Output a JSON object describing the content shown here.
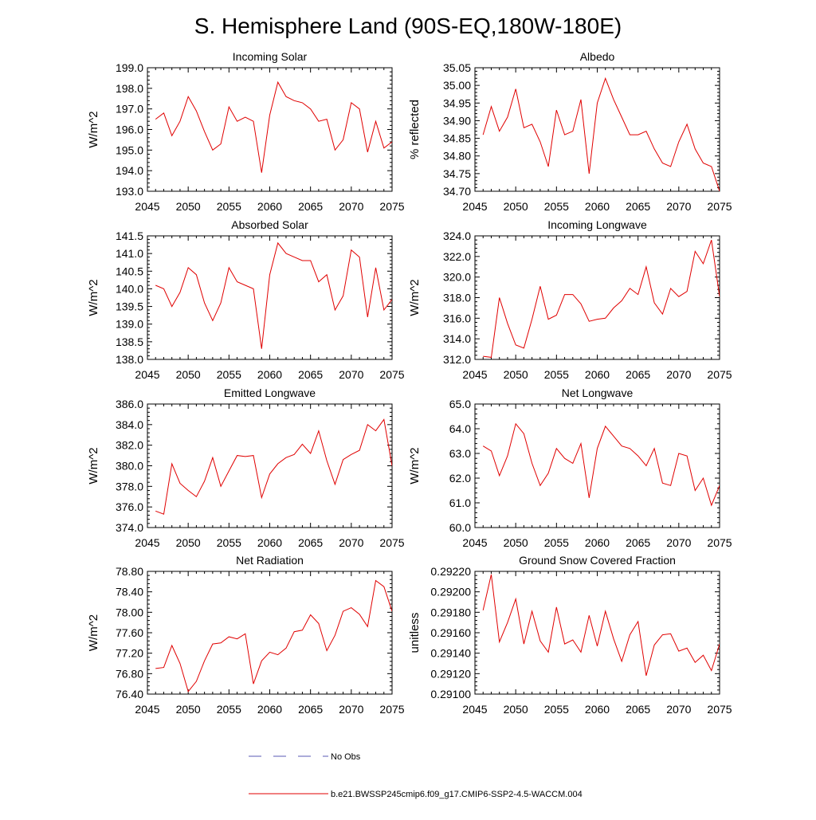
{
  "figure": {
    "title": "S. Hemisphere Land (90S-EQ,180W-180E)",
    "legend": [
      {
        "label": "No Obs",
        "color": "#5a5ab4",
        "style": "dashed"
      },
      {
        "label": "b.e21.BWSSP245cmip6.f09_g17.CMIP6-SSP2-4.5-WACCM.004",
        "color": "#e00000",
        "style": "solid"
      }
    ],
    "line_color": "#e00000"
  },
  "chart_data": [
    {
      "type": "line",
      "title": "Incoming Solar",
      "ylabel": "W/m^2",
      "xlim": [
        2045,
        2075
      ],
      "ylim": [
        193.0,
        199.0
      ],
      "xticks": [
        2045,
        2050,
        2055,
        2060,
        2065,
        2070,
        2075
      ],
      "yticks": [
        193.0,
        194.0,
        195.0,
        196.0,
        197.0,
        198.0,
        199.0
      ],
      "ydecimals": 1,
      "x": [
        2046,
        2047,
        2048,
        2049,
        2050,
        2051,
        2052,
        2053,
        2054,
        2055,
        2056,
        2057,
        2058,
        2059,
        2060,
        2061,
        2062,
        2063,
        2064,
        2065,
        2066,
        2067,
        2068,
        2069,
        2070,
        2071,
        2072,
        2073,
        2074,
        2075
      ],
      "values": [
        196.5,
        196.8,
        195.7,
        196.4,
        197.6,
        196.9,
        195.9,
        195.0,
        195.3,
        197.1,
        196.4,
        196.6,
        196.4,
        193.9,
        196.7,
        198.3,
        197.6,
        197.4,
        197.3,
        197.0,
        196.4,
        196.5,
        195.0,
        195.5,
        197.3,
        197.0,
        194.9,
        196.4,
        195.1,
        195.4
      ]
    },
    {
      "type": "line",
      "title": "Albedo",
      "ylabel": "% reflected",
      "xlim": [
        2045,
        2075
      ],
      "ylim": [
        34.7,
        35.05
      ],
      "xticks": [
        2045,
        2050,
        2055,
        2060,
        2065,
        2070,
        2075
      ],
      "yticks": [
        34.7,
        34.75,
        34.8,
        34.85,
        34.9,
        34.95,
        35.0,
        35.05
      ],
      "ydecimals": 2,
      "x": [
        2046,
        2047,
        2048,
        2049,
        2050,
        2051,
        2052,
        2053,
        2054,
        2055,
        2056,
        2057,
        2058,
        2059,
        2060,
        2061,
        2062,
        2063,
        2064,
        2065,
        2066,
        2067,
        2068,
        2069,
        2070,
        2071,
        2072,
        2073,
        2074,
        2075
      ],
      "values": [
        34.86,
        34.94,
        34.87,
        34.91,
        34.99,
        34.88,
        34.89,
        34.84,
        34.77,
        34.93,
        34.86,
        34.87,
        34.96,
        34.75,
        34.95,
        35.02,
        34.96,
        34.91,
        34.86,
        34.86,
        34.87,
        34.82,
        34.78,
        34.77,
        34.84,
        34.89,
        34.82,
        34.78,
        34.77,
        34.7
      ]
    },
    {
      "type": "line",
      "title": "Absorbed Solar",
      "ylabel": "W/m^2",
      "xlim": [
        2045,
        2075
      ],
      "ylim": [
        138.0,
        141.5
      ],
      "xticks": [
        2045,
        2050,
        2055,
        2060,
        2065,
        2070,
        2075
      ],
      "yticks": [
        138.0,
        138.5,
        139.0,
        139.5,
        140.0,
        140.5,
        141.0,
        141.5
      ],
      "ydecimals": 1,
      "x": [
        2046,
        2047,
        2048,
        2049,
        2050,
        2051,
        2052,
        2053,
        2054,
        2055,
        2056,
        2057,
        2058,
        2059,
        2060,
        2061,
        2062,
        2063,
        2064,
        2065,
        2066,
        2067,
        2068,
        2069,
        2070,
        2071,
        2072,
        2073,
        2074,
        2075
      ],
      "values": [
        140.1,
        140.0,
        139.5,
        139.9,
        140.6,
        140.4,
        139.6,
        139.1,
        139.6,
        140.6,
        140.2,
        140.1,
        140.0,
        138.3,
        140.4,
        141.3,
        141.0,
        140.9,
        140.8,
        140.8,
        140.2,
        140.4,
        139.4,
        139.8,
        141.1,
        140.9,
        139.2,
        140.6,
        139.4,
        139.7
      ]
    },
    {
      "type": "line",
      "title": "Incoming Longwave",
      "ylabel": "W/m^2",
      "xlim": [
        2045,
        2075
      ],
      "ylim": [
        312.0,
        324.0
      ],
      "xticks": [
        2045,
        2050,
        2055,
        2060,
        2065,
        2070,
        2075
      ],
      "yticks": [
        312.0,
        314.0,
        316.0,
        318.0,
        320.0,
        322.0,
        324.0
      ],
      "ydecimals": 1,
      "x": [
        2046,
        2047,
        2048,
        2049,
        2050,
        2051,
        2052,
        2053,
        2054,
        2055,
        2056,
        2057,
        2058,
        2059,
        2060,
        2061,
        2062,
        2063,
        2064,
        2065,
        2066,
        2067,
        2068,
        2069,
        2070,
        2071,
        2072,
        2073,
        2074,
        2075
      ],
      "values": [
        312.3,
        312.2,
        318.0,
        315.5,
        313.4,
        313.1,
        315.9,
        319.1,
        315.9,
        316.3,
        318.3,
        318.3,
        317.4,
        315.7,
        315.9,
        316.0,
        317.0,
        317.7,
        318.9,
        318.3,
        321.0,
        317.5,
        316.4,
        318.9,
        318.1,
        318.6,
        322.5,
        321.3,
        323.6,
        318.1
      ]
    },
    {
      "type": "line",
      "title": "Emitted Longwave",
      "ylabel": "W/m^2",
      "xlim": [
        2045,
        2075
      ],
      "ylim": [
        374.0,
        386.0
      ],
      "xticks": [
        2045,
        2050,
        2055,
        2060,
        2065,
        2070,
        2075
      ],
      "yticks": [
        374.0,
        376.0,
        378.0,
        380.0,
        382.0,
        384.0,
        386.0
      ],
      "ydecimals": 1,
      "x": [
        2046,
        2047,
        2048,
        2049,
        2050,
        2051,
        2052,
        2053,
        2054,
        2055,
        2056,
        2057,
        2058,
        2059,
        2060,
        2061,
        2062,
        2063,
        2064,
        2065,
        2066,
        2067,
        2068,
        2069,
        2070,
        2071,
        2072,
        2073,
        2074,
        2075
      ],
      "values": [
        375.6,
        375.3,
        380.2,
        378.3,
        377.6,
        377.0,
        378.5,
        380.8,
        378.0,
        379.5,
        381.0,
        380.9,
        381.0,
        376.9,
        379.2,
        380.2,
        380.8,
        381.1,
        382.1,
        381.2,
        383.4,
        380.5,
        378.2,
        380.6,
        381.1,
        381.5,
        384.0,
        383.4,
        384.5,
        380.0
      ]
    },
    {
      "type": "line",
      "title": "Net Longwave",
      "ylabel": "W/m^2",
      "xlim": [
        2045,
        2075
      ],
      "ylim": [
        60.0,
        65.0
      ],
      "xticks": [
        2045,
        2050,
        2055,
        2060,
        2065,
        2070,
        2075
      ],
      "yticks": [
        60.0,
        61.0,
        62.0,
        63.0,
        64.0,
        65.0
      ],
      "ydecimals": 1,
      "x": [
        2046,
        2047,
        2048,
        2049,
        2050,
        2051,
        2052,
        2053,
        2054,
        2055,
        2056,
        2057,
        2058,
        2059,
        2060,
        2061,
        2062,
        2063,
        2064,
        2065,
        2066,
        2067,
        2068,
        2069,
        2070,
        2071,
        2072,
        2073,
        2074,
        2075
      ],
      "values": [
        63.3,
        63.1,
        62.1,
        62.9,
        64.2,
        63.8,
        62.6,
        61.7,
        62.2,
        63.2,
        62.8,
        62.6,
        63.4,
        61.2,
        63.2,
        64.1,
        63.7,
        63.3,
        63.2,
        62.9,
        62.5,
        63.2,
        61.8,
        61.7,
        63.0,
        62.9,
        61.5,
        62.0,
        60.9,
        61.7
      ]
    },
    {
      "type": "line",
      "title": "Net Radiation",
      "ylabel": "W/m^2",
      "xlim": [
        2045,
        2075
      ],
      "ylim": [
        76.4,
        78.8
      ],
      "xticks": [
        2045,
        2050,
        2055,
        2060,
        2065,
        2070,
        2075
      ],
      "yticks": [
        76.4,
        76.8,
        77.2,
        77.6,
        78.0,
        78.4,
        78.8
      ],
      "ydecimals": 2,
      "x": [
        2046,
        2047,
        2048,
        2049,
        2050,
        2051,
        2052,
        2053,
        2054,
        2055,
        2056,
        2057,
        2058,
        2059,
        2060,
        2061,
        2062,
        2063,
        2064,
        2065,
        2066,
        2067,
        2068,
        2069,
        2070,
        2071,
        2072,
        2073,
        2074,
        2075
      ],
      "values": [
        76.9,
        76.92,
        77.35,
        77.0,
        76.45,
        76.65,
        77.05,
        77.38,
        77.4,
        77.52,
        77.48,
        77.58,
        76.6,
        77.05,
        77.22,
        77.17,
        77.3,
        77.62,
        77.65,
        77.95,
        77.78,
        77.25,
        77.55,
        78.02,
        78.09,
        77.96,
        77.72,
        78.62,
        78.5,
        78.02
      ]
    },
    {
      "type": "line",
      "title": "Ground Snow Covered Fraction",
      "ylabel": "unitless",
      "xlim": [
        2045,
        2075
      ],
      "ylim": [
        0.291,
        0.2922
      ],
      "xticks": [
        2045,
        2050,
        2055,
        2060,
        2065,
        2070,
        2075
      ],
      "yticks": [
        0.291,
        0.2912,
        0.2914,
        0.2916,
        0.2918,
        0.292,
        0.2922
      ],
      "ydecimals": 5,
      "x": [
        2046,
        2047,
        2048,
        2049,
        2050,
        2051,
        2052,
        2053,
        2054,
        2055,
        2056,
        2057,
        2058,
        2059,
        2060,
        2061,
        2062,
        2063,
        2064,
        2065,
        2066,
        2067,
        2068,
        2069,
        2070,
        2071,
        2072,
        2073,
        2074,
        2075
      ],
      "values": [
        0.29182,
        0.29217,
        0.29151,
        0.2917,
        0.29193,
        0.29149,
        0.29181,
        0.29152,
        0.29141,
        0.29185,
        0.29149,
        0.29153,
        0.29141,
        0.29177,
        0.29147,
        0.29181,
        0.29154,
        0.29132,
        0.29158,
        0.29171,
        0.29118,
        0.29148,
        0.29158,
        0.29159,
        0.29142,
        0.29145,
        0.29131,
        0.29138,
        0.29123,
        0.29149
      ]
    }
  ]
}
